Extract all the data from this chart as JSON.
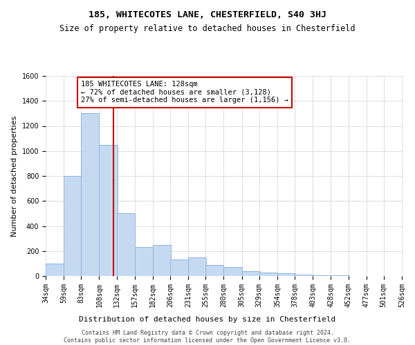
{
  "title": "185, WHITECOTES LANE, CHESTERFIELD, S40 3HJ",
  "subtitle": "Size of property relative to detached houses in Chesterfield",
  "xlabel": "Distribution of detached houses by size in Chesterfield",
  "ylabel": "Number of detached properties",
  "bar_color": "#c5d9f1",
  "bar_edge_color": "#8db4e2",
  "annotation_box_color": "#cc0000",
  "annotation_text": "185 WHITECOTES LANE: 128sqm\n← 72% of detached houses are smaller (3,128)\n27% of semi-detached houses are larger (1,156) →",
  "vline_x": 128,
  "vline_color": "#cc0000",
  "bins_left": [
    34,
    59,
    83,
    108,
    132,
    157,
    182,
    206,
    231,
    255,
    280,
    305,
    329,
    354,
    378,
    403,
    428,
    452,
    477,
    501
  ],
  "bin_width": 25,
  "counts": [
    100,
    800,
    1300,
    1050,
    500,
    230,
    250,
    130,
    150,
    90,
    70,
    40,
    25,
    20,
    10,
    5,
    3,
    2,
    1,
    1
  ],
  "ylim": [
    0,
    1600
  ],
  "yticks": [
    0,
    200,
    400,
    600,
    800,
    1000,
    1200,
    1400,
    1600
  ],
  "xtick_labels": [
    "34sqm",
    "59sqm",
    "83sqm",
    "108sqm",
    "132sqm",
    "157sqm",
    "182sqm",
    "206sqm",
    "231sqm",
    "255sqm",
    "280sqm",
    "305sqm",
    "329sqm",
    "354sqm",
    "378sqm",
    "403sqm",
    "428sqm",
    "452sqm",
    "477sqm",
    "501sqm",
    "526sqm"
  ],
  "footnote": "Contains HM Land Registry data © Crown copyright and database right 2024.\nContains public sector information licensed under the Open Government Licence v3.0.",
  "bg_color": "#ffffff",
  "grid_color": "#d0d0d0",
  "title_fontsize": 9.5,
  "subtitle_fontsize": 8.5,
  "axis_label_fontsize": 8,
  "tick_fontsize": 7,
  "annotation_fontsize": 7.5,
  "footnote_fontsize": 6
}
